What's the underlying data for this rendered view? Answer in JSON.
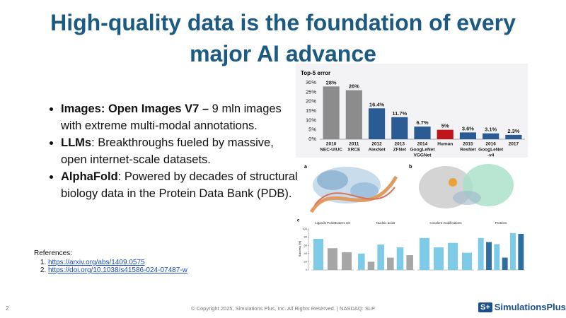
{
  "slide": {
    "title": "High-quality data is the foundation of every major AI advance",
    "bullets": [
      {
        "bold": "Images: Open Images V7 –",
        "text": " 9 mln images  with extreme multi-modal annotations."
      },
      {
        "bold": "LLMs",
        "text": ": Breakthroughs fueled by massive, open internet-scale datasets."
      },
      {
        "bold": "AlphaFold",
        "text": ": Powered by decades of structural biology data in the Protein Data Bank (PDB)."
      }
    ],
    "references": {
      "heading": "References:",
      "links": [
        "https://arxiv.org/abs/1409.0575",
        "https://doi.org/10.1038/s41586-024-07487-w"
      ]
    },
    "footer": {
      "page": "2",
      "copyright": "© Copyright 2025, Simulations Plus, Inc. All Rights Reserved. | NASDAQ: SLP",
      "logo_mark": "S+",
      "logo_text": "SimulationsPlus"
    },
    "chart": {
      "type": "bar",
      "title": "Top-5 error",
      "categories": [
        [
          "2010",
          "NEC-UIUC"
        ],
        [
          "2011",
          "XRCE"
        ],
        [
          "2012",
          "AlexNet"
        ],
        [
          "2013",
          "ZFNet"
        ],
        [
          "2014",
          "GoogLeNet",
          "VGGNet"
        ],
        [
          "Human"
        ],
        [
          "2015",
          "ResNet"
        ],
        [
          "2016",
          "GoogLeNet",
          "-v4"
        ],
        [
          "2017"
        ]
      ],
      "values": [
        28,
        26,
        16.4,
        11.7,
        6.7,
        5,
        3.6,
        3.1,
        2.3
      ],
      "value_labels": [
        "28%",
        "26%",
        "16.4%",
        "11.7%",
        "6.7%",
        "5%",
        "3.6%",
        "3.1%",
        "2.3%"
      ],
      "colors": [
        "#8c8c8c",
        "#8c8c8c",
        "#2a5b95",
        "#2a5b95",
        "#2a5b95",
        "#c0151b",
        "#2a5b95",
        "#2a5b95",
        "#2a5b95"
      ],
      "ylim": [
        0,
        30
      ],
      "yticks": [
        {
          "value": 0,
          "label": "0%"
        },
        {
          "value": 5,
          "label": "5%"
        },
        {
          "value": 10,
          "label": "10%"
        },
        {
          "value": 15,
          "label": "15%"
        },
        {
          "value": 20,
          "label": "20%"
        },
        {
          "value": 25,
          "label": "25%"
        },
        {
          "value": 30,
          "label": "30%"
        }
      ]
    },
    "figure": {
      "panel_letters": [
        "a",
        "b",
        "c"
      ],
      "type": "bar",
      "y_label": "Success (%)",
      "ylim": [
        0,
        100
      ],
      "yticks": [
        0,
        20,
        40,
        60,
        80,
        100
      ],
      "panels": [
        {
          "title": "Ligands PoseBusters set",
          "values": [
            76,
            53,
            43
          ],
          "colors": [
            "#7ecbe8",
            "#a6a6a6",
            "#a6a6a6"
          ]
        },
        {
          "title": "Nucleic acids",
          "values": [
            40,
            20,
            62,
            30,
            55,
            36
          ],
          "colors": [
            "#7ecbe8",
            "#a6a6a6",
            "#7ecbe8",
            "#a6a6a6",
            "#7ecbe8",
            "#a6a6a6"
          ]
        },
        {
          "title": "Covalent modifications",
          "values": [
            78,
            55,
            66,
            42
          ],
          "colors": [
            "#7ecbe8",
            "#7ecbe8",
            "#7ecbe8",
            "#7ecbe8"
          ]
        },
        {
          "title": "Proteins",
          "values": [
            78,
            68,
            63,
            30,
            90,
            88
          ],
          "colors": [
            "#7ecbe8",
            "#2f6f9f",
            "#7ecbe8",
            "#2f6f9f",
            "#7ecbe8",
            "#2f6f9f"
          ]
        }
      ]
    }
  }
}
